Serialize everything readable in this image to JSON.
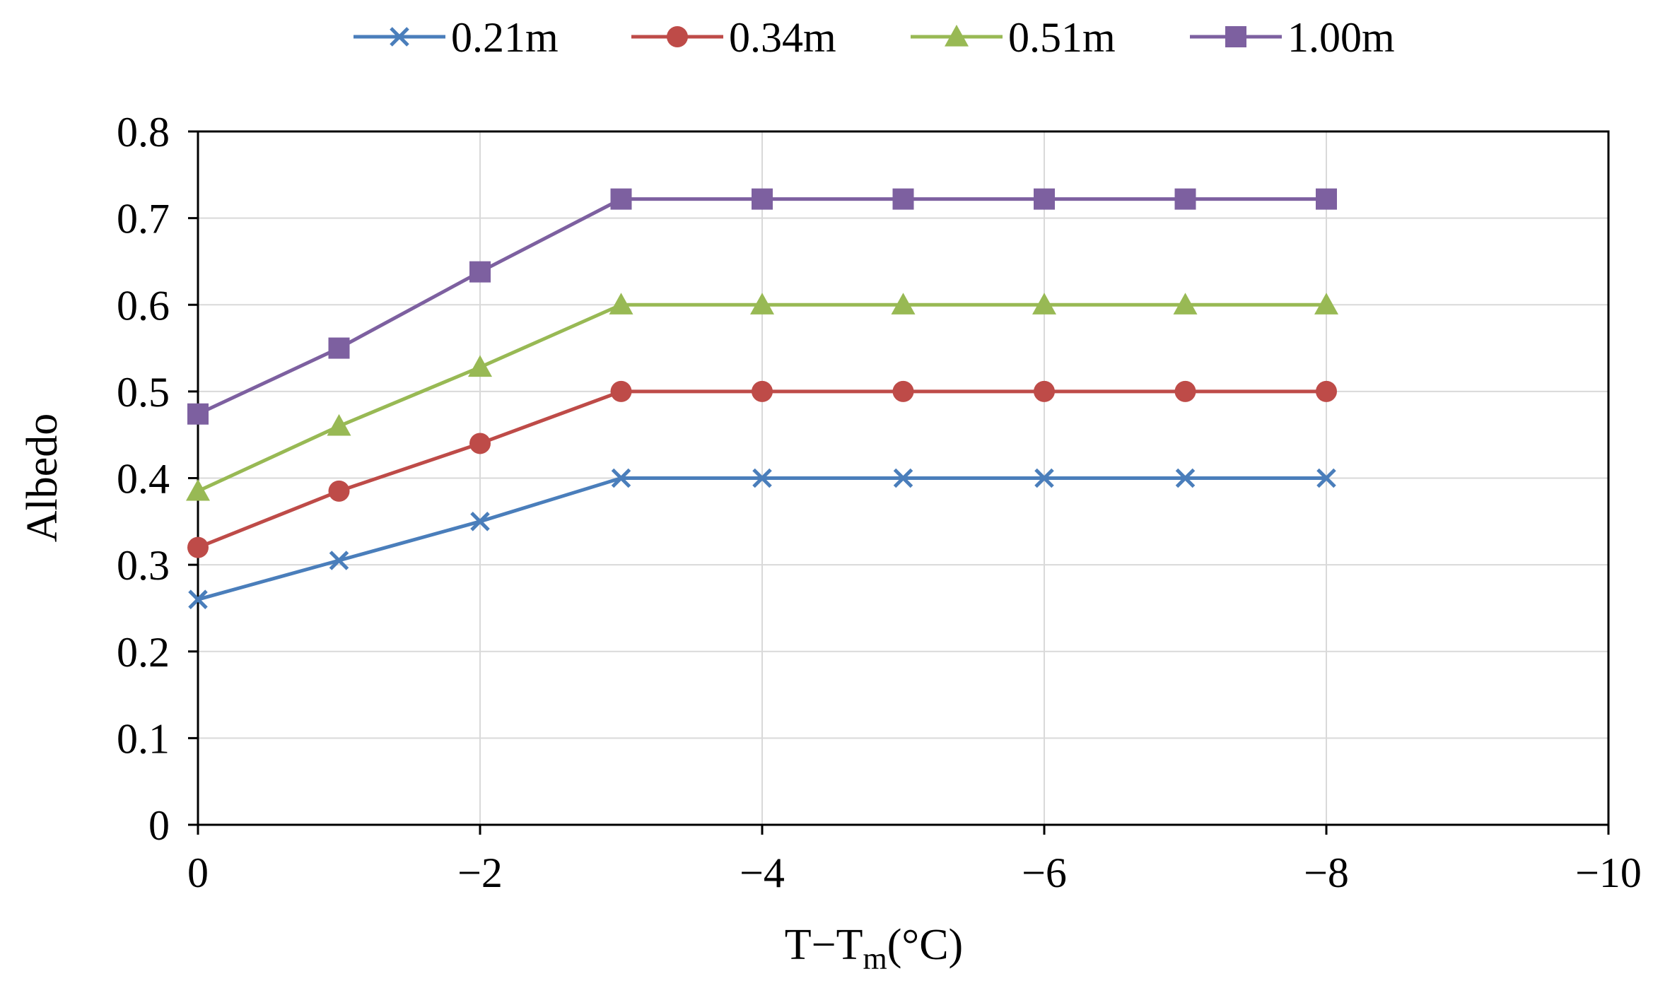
{
  "chart_data": {
    "type": "line",
    "title": "",
    "xlabel": {
      "main": "T−T",
      "sub": "m",
      "unit": "(°C)"
    },
    "ylabel": "Albedo",
    "x": [
      0,
      -1,
      -2,
      -3,
      -4,
      -5,
      -6,
      -7,
      -8
    ],
    "xlim": [
      0,
      -10
    ],
    "ylim": [
      0,
      0.8
    ],
    "x_ticks": [
      {
        "value": 0,
        "label": "0"
      },
      {
        "value": -2,
        "label": "−2"
      },
      {
        "value": -4,
        "label": "−4"
      },
      {
        "value": -6,
        "label": "−6"
      },
      {
        "value": -8,
        "label": "−8"
      },
      {
        "value": -10,
        "label": "−10"
      }
    ],
    "y_ticks": [
      {
        "value": 0,
        "label": "0"
      },
      {
        "value": 0.1,
        "label": "0.1"
      },
      {
        "value": 0.2,
        "label": "0.2"
      },
      {
        "value": 0.3,
        "label": "0.3"
      },
      {
        "value": 0.4,
        "label": "0.4"
      },
      {
        "value": 0.5,
        "label": "0.5"
      },
      {
        "value": 0.6,
        "label": "0.6"
      },
      {
        "value": 0.7,
        "label": "0.7"
      },
      {
        "value": 0.8,
        "label": "0.8"
      }
    ],
    "grid": true,
    "legend_position": "top",
    "series": [
      {
        "name": "0.21m",
        "color": "#4a7ebb",
        "marker": "x",
        "values": [
          0.26,
          0.305,
          0.35,
          0.4,
          0.4,
          0.4,
          0.4,
          0.4,
          0.4
        ]
      },
      {
        "name": "0.34m",
        "color": "#be4b48",
        "marker": "circle",
        "values": [
          0.32,
          0.385,
          0.44,
          0.5,
          0.5,
          0.5,
          0.5,
          0.5,
          0.5
        ]
      },
      {
        "name": "0.51m",
        "color": "#98b954",
        "marker": "triangle",
        "values": [
          0.385,
          0.46,
          0.528,
          0.6,
          0.6,
          0.6,
          0.6,
          0.6,
          0.6
        ]
      },
      {
        "name": "1.00m",
        "color": "#7d60a0",
        "marker": "square",
        "values": [
          0.474,
          0.55,
          0.638,
          0.722,
          0.722,
          0.722,
          0.722,
          0.722,
          0.722
        ]
      }
    ]
  }
}
